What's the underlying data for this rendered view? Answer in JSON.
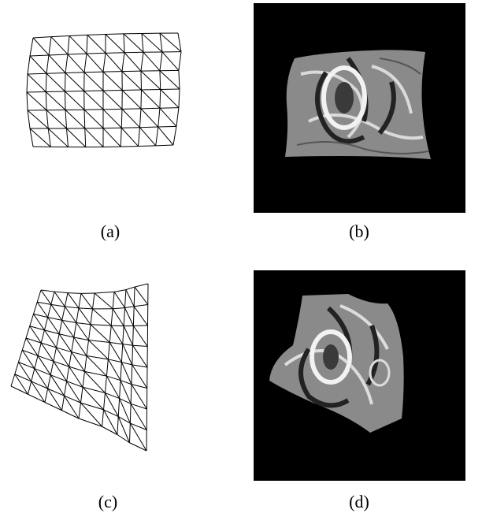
{
  "figure": {
    "panels": [
      {
        "label": "(a)",
        "content": "wireframe-mesh"
      },
      {
        "label": "(b)",
        "content": "textured-mesh"
      },
      {
        "label": "(c)",
        "content": "wireframe-mesh"
      },
      {
        "label": "(d)",
        "content": "textured-mesh"
      }
    ],
    "colors": {
      "background": "#000000",
      "line": "#000000",
      "page": "#ffffff"
    }
  }
}
